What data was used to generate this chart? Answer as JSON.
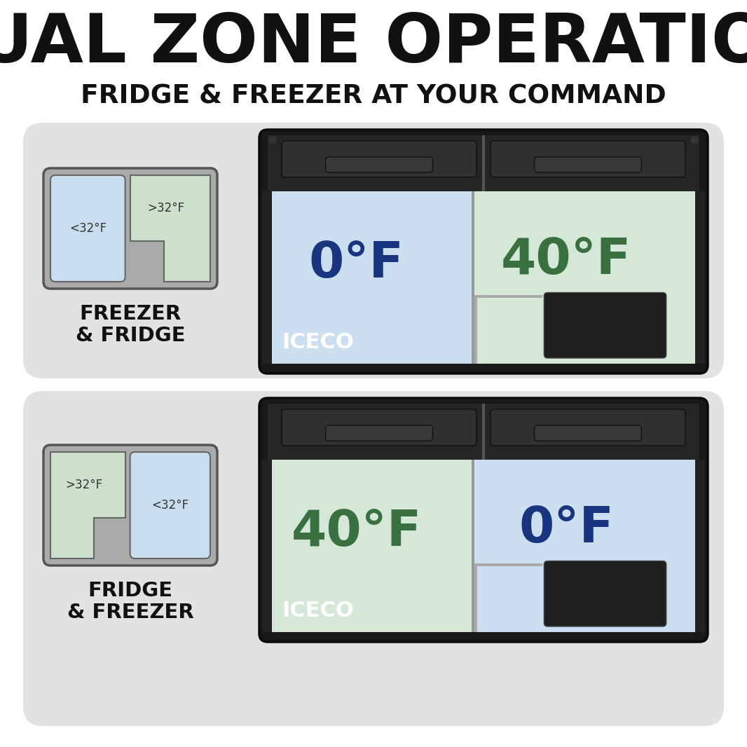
{
  "title": "DUAL ZONE OPERATION",
  "subtitle": "FRIDGE & FREEZER AT YOUR COMMAND",
  "bg_color": "#ffffff",
  "panel_bg": "#e2e2e2",
  "panel1_label": "FREEZER\n& FRIDGE",
  "panel2_label": "FRIDGE\n& FREEZER",
  "panel1_left_temp": "0°F",
  "panel1_right_temp": "40°F",
  "panel2_left_temp": "40°F",
  "panel2_right_temp": "0°F",
  "panel1_left_color": "#ccdff0",
  "panel1_right_color": "#d5e8d8",
  "panel2_left_color": "#d5e8d8",
  "panel2_right_color": "#ccdff0",
  "panel1_left_temp_color": "#1a3580",
  "panel1_right_temp_color": "#3a7040",
  "panel2_left_temp_color": "#3a7040",
  "panel2_right_temp_color": "#1a3580",
  "icon1_left_color": "#c8ddef",
  "icon1_right_color": "#cce0cc",
  "icon1_left_label": "<32°F",
  "icon1_right_label": ">32°F",
  "icon2_left_color": "#cce0cc",
  "icon2_right_color": "#c8ddef",
  "icon2_left_label": ">32°F",
  "icon2_right_label": "<32°F",
  "iceco_label": "ICECO",
  "fridge_outer": "#181818",
  "fridge_top": "#252525",
  "fridge_vent": "#303030",
  "fridge_handle": "#383838",
  "compressor_color": "#252525",
  "divider_color": "#aaaaaa"
}
